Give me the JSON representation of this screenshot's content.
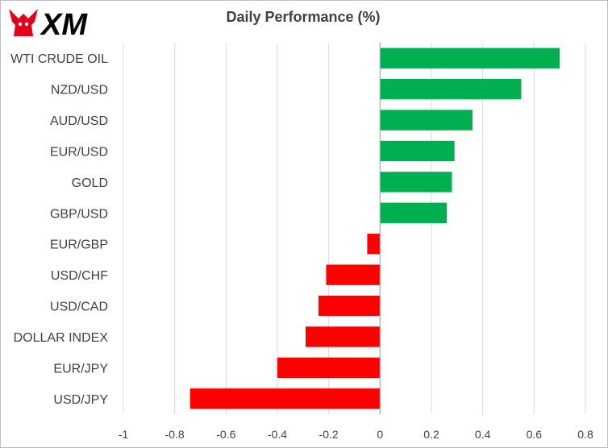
{
  "logo": {
    "text": "XM"
  },
  "chart_data": {
    "type": "bar",
    "orientation": "horizontal",
    "title": "Daily Performance  (%)",
    "categories": [
      "WTI CRUDE OIL",
      "NZD/USD",
      "AUD/USD",
      "EUR/USD",
      "GOLD",
      "GBP/USD",
      "EUR/GBP",
      "USD/CHF",
      "USD/CAD",
      "DOLLAR INDEX",
      "EUR/JPY",
      "USD/JPY"
    ],
    "values": [
      0.7,
      0.55,
      0.36,
      0.29,
      0.28,
      0.26,
      -0.05,
      -0.21,
      -0.24,
      -0.29,
      -0.4,
      -0.74
    ],
    "xlim": [
      -1,
      0.8
    ],
    "xticks": [
      -1,
      -0.8,
      -0.6,
      -0.4,
      -0.2,
      0,
      0.2,
      0.4,
      0.6,
      0.8
    ],
    "xtick_labels": [
      "-1",
      "-0.8",
      "-0.6",
      "-0.4",
      "-0.2",
      "0",
      "0.2",
      "0.4",
      "0.6",
      "0.8"
    ],
    "grid": "vertical",
    "colors": {
      "positive": "#00b050",
      "negative": "#ff0000",
      "grid": "#d9d9d9",
      "axis": "#a6a6a6"
    }
  }
}
